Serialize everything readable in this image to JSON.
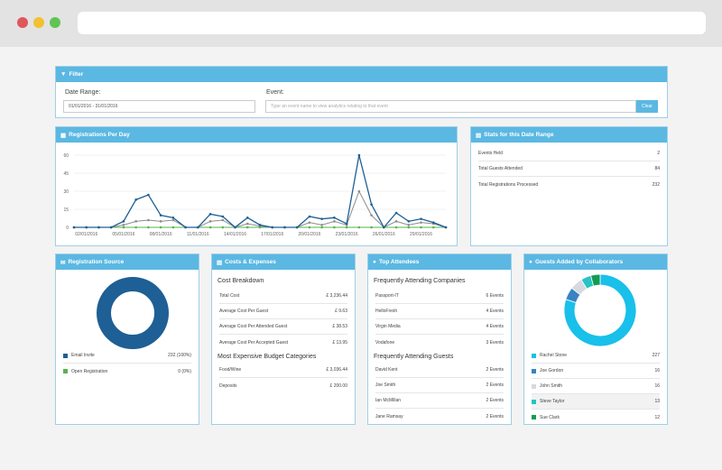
{
  "filter": {
    "title": "Filter",
    "date_label": "Date Range:",
    "date_value": "01/01/2016 - 31/01/2016",
    "event_label": "Event:",
    "event_placeholder": "Type an event name to view analytics relating to that event",
    "clear_label": "Clear"
  },
  "registrations": {
    "title": "Registrations Per Day"
  },
  "chart_data": {
    "type": "line",
    "x": [
      "01/01",
      "02/01",
      "03/01",
      "04/01",
      "05/01",
      "06/01",
      "07/01",
      "08/01",
      "09/01",
      "10/01",
      "11/01",
      "12/01",
      "13/01",
      "14/01",
      "15/01",
      "16/01",
      "17/01",
      "18/01",
      "19/01",
      "20/01",
      "21/01",
      "22/01",
      "23/01",
      "24/01",
      "25/01",
      "26/01",
      "27/01",
      "28/01",
      "29/01",
      "30/01",
      "31/01"
    ],
    "x_tick_labels": [
      "02/01/2016",
      "05/01/2016",
      "08/01/2016",
      "11/01/2016",
      "14/01/2016",
      "17/01/2016",
      "20/01/2016",
      "23/01/2016",
      "26/01/2016",
      "29/01/2016"
    ],
    "series": [
      {
        "color": "#1e5f95",
        "values": [
          0,
          0,
          0,
          0,
          5,
          23,
          27,
          10,
          8,
          0,
          0,
          11,
          9,
          0,
          8,
          2,
          0,
          0,
          0,
          9,
          7,
          8,
          3,
          60,
          19,
          0,
          12,
          5,
          7,
          4,
          0
        ]
      },
      {
        "color": "#8d8d8d",
        "values": [
          0,
          0,
          0,
          0,
          2,
          5,
          6,
          5,
          6,
          0,
          0,
          5,
          6,
          0,
          3,
          1,
          0,
          0,
          0,
          4,
          2,
          5,
          2,
          30,
          10,
          0,
          5,
          2,
          4,
          3,
          0
        ]
      },
      {
        "color": "#59b34f",
        "values": [
          0,
          0,
          0,
          0,
          0,
          0,
          0,
          0,
          0,
          0,
          0,
          0,
          0,
          0,
          0,
          0,
          0,
          0,
          0,
          0,
          0,
          0,
          0,
          0,
          0,
          0,
          0,
          0,
          0,
          0,
          0
        ]
      }
    ],
    "yticks": [
      "60",
      "45",
      "30",
      "15",
      "0"
    ],
    "ylim": [
      0,
      60
    ],
    "grid": true
  },
  "stats": {
    "title": "Stats for this Date Range",
    "rows": [
      {
        "label": "Events Held",
        "value": "2"
      },
      {
        "label": "Total Guests Attended",
        "value": "84"
      },
      {
        "label": "Total Registrations Processed",
        "value": "232"
      }
    ]
  },
  "source": {
    "title": "Registration Source",
    "rows": [
      {
        "label": "Email Invite",
        "value": "232 (100%)",
        "color": "#1e5f95"
      },
      {
        "label": "Open Registration",
        "value": "0 (0%)",
        "color": "#59b34f"
      }
    ],
    "slices": [
      232,
      0
    ]
  },
  "costs": {
    "title": "Costs & Expenses",
    "breakdown_title": "Cost Breakdown",
    "breakdown": [
      {
        "label": "Total Cost",
        "value": "£ 3,236.44"
      },
      {
        "label": "Average Cost Per Guest",
        "value": "£ 9.63"
      },
      {
        "label": "Average Cost Per Attended Guest",
        "value": "£ 38.53"
      },
      {
        "label": "Average Cost Per Accepted Guest",
        "value": "£ 13.95"
      }
    ],
    "categories_title": "Most Expensive Budget Categories",
    "categories": [
      {
        "label": "Food/Wine",
        "value": "£ 3,036.44"
      },
      {
        "label": "Deposits",
        "value": "£ 200.00"
      }
    ]
  },
  "attendees": {
    "title": "Top Attendees",
    "companies_title": "Frequently Attending Companies",
    "companies": [
      {
        "label": "Passport-IT",
        "value": "6 Events"
      },
      {
        "label": "HelloFresh",
        "value": "4 Events"
      },
      {
        "label": "Virgin Media",
        "value": "4 Events"
      },
      {
        "label": "Vodafone",
        "value": "3 Events"
      }
    ],
    "guests_title": "Frequently Attending Guests",
    "guests": [
      {
        "label": "David Kent",
        "value": "2 Events"
      },
      {
        "label": "Joe Smith",
        "value": "2 Events"
      },
      {
        "label": "Ian McMillan",
        "value": "2 Events"
      },
      {
        "label": "Jane Ramsay",
        "value": "2 Events"
      }
    ]
  },
  "collab": {
    "title": "Guests Added by Collaborators",
    "rows": [
      {
        "label": "Rachel Stone",
        "value": "227",
        "color": "#18c0ea"
      },
      {
        "label": "Joe Gordon",
        "value": "16",
        "color": "#3783c4"
      },
      {
        "label": "John Smith",
        "value": "16",
        "color": "#d6d9dd"
      },
      {
        "label": "Steve Taylor",
        "value": "13",
        "color": "#27c4c4"
      },
      {
        "label": "Sue Clark",
        "value": "12",
        "color": "#139b54"
      }
    ]
  }
}
